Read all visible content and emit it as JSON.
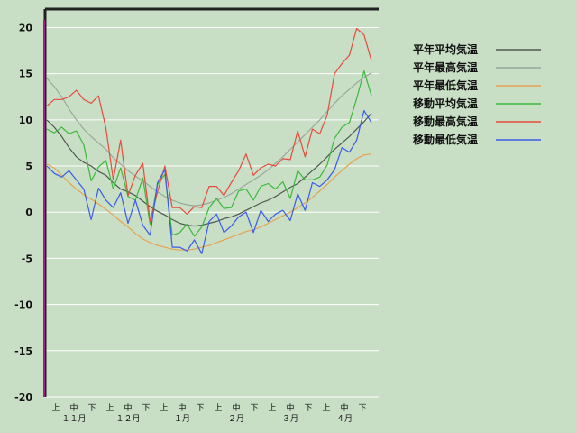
{
  "chart_data": {
    "type": "line",
    "ylim": [
      -20,
      22
    ],
    "y_ticks": [
      20,
      15,
      10,
      5,
      0,
      -5,
      -10,
      -15,
      -20
    ],
    "grid": "horizontal",
    "legend_placement": "right",
    "x_period_ticks": [
      "上",
      "中",
      "下",
      "上",
      "中",
      "下",
      "上",
      "中",
      "下",
      "上",
      "中",
      "下",
      "上",
      "中",
      "下",
      "上",
      "中",
      "下"
    ],
    "months": [
      "１１月",
      "１２月",
      "１月",
      "２月",
      "３月",
      "４月"
    ],
    "x": [
      0,
      4,
      8,
      12,
      16,
      20,
      24,
      28,
      32,
      36,
      40,
      44,
      48,
      52,
      56,
      60,
      64,
      68,
      72,
      76,
      80,
      84,
      88,
      92,
      96,
      100,
      104,
      108,
      112,
      116,
      120,
      124,
      128,
      132,
      136,
      140,
      144,
      148,
      152,
      156,
      160,
      164,
      168,
      172,
      176
    ],
    "series": [
      {
        "name": "平年平均気温",
        "color": "#505850",
        "values": [
          10,
          9.2,
          8.2,
          7,
          6,
          5.4,
          5,
          4.4,
          4,
          3.2,
          2.5,
          2.2,
          1.8,
          1.2,
          0.6,
          0.1,
          -0.3,
          -0.8,
          -1.2,
          -1.4,
          -1.5,
          -1.4,
          -1.2,
          -1,
          -0.7,
          -0.5,
          -0.2,
          0.2,
          0.6,
          1,
          1.3,
          1.7,
          2.2,
          2.7,
          3.1,
          3.8,
          4.5,
          5.2,
          6,
          6.8,
          7.5,
          8.2,
          9,
          9.8,
          10.7
        ]
      },
      {
        "name": "平年最高気温",
        "color": "#9aa89a",
        "values": [
          14.5,
          13.6,
          12.5,
          11.2,
          10,
          9,
          8.2,
          7.5,
          6.8,
          5.9,
          5.2,
          4.5,
          3.9,
          3.4,
          2.8,
          2.2,
          1.7,
          1.3,
          1,
          0.8,
          0.7,
          0.8,
          1,
          1.3,
          1.6,
          2,
          2.5,
          3,
          3.5,
          4,
          4.6,
          5.3,
          6,
          6.8,
          7.6,
          8.4,
          9.2,
          10,
          10.9,
          11.8,
          12.6,
          13.3,
          14,
          14.6,
          15.1
        ]
      },
      {
        "name": "平年最低気温",
        "color": "#e8a050",
        "values": [
          5.2,
          4.8,
          4,
          3.2,
          2.5,
          1.9,
          1.4,
          0.9,
          0.3,
          -0.3,
          -1,
          -1.6,
          -2.3,
          -2.9,
          -3.3,
          -3.6,
          -3.8,
          -4,
          -4.1,
          -4.1,
          -4,
          -3.8,
          -3.6,
          -3.3,
          -3,
          -2.7,
          -2.4,
          -2.1,
          -1.9,
          -1.6,
          -1.2,
          -0.8,
          -0.4,
          0,
          0.5,
          1,
          1.6,
          2.3,
          3,
          3.8,
          4.5,
          5.2,
          5.8,
          6.2,
          6.3
        ]
      },
      {
        "name": "移動平均気温",
        "color": "#3cb83c",
        "values": [
          9,
          8.6,
          9.2,
          8.5,
          8.8,
          7.3,
          3.4,
          4.9,
          5.6,
          2.5,
          4.8,
          1.7,
          1.3,
          3.7,
          -1.3,
          3,
          4.1,
          -2.5,
          -2.2,
          -1.3,
          -2.6,
          -1.6,
          0.5,
          1.5,
          0.4,
          0.5,
          2.3,
          2.5,
          1.3,
          2.8,
          3.1,
          2.5,
          3.3,
          1.5,
          4.5,
          3.5,
          3.5,
          3.8,
          5.1,
          8,
          9.2,
          9.7,
          12.3,
          15.3,
          12.6
        ]
      },
      {
        "name": "移動最高気温",
        "color": "#e84a3a",
        "values": [
          11.5,
          12.2,
          12.2,
          12.5,
          13.2,
          12.2,
          11.8,
          12.6,
          9.1,
          3.5,
          7.8,
          1.8,
          4,
          5.3,
          -1,
          2.2,
          5,
          0.5,
          0.5,
          -0.2,
          0.6,
          0.5,
          2.8,
          2.8,
          1.8,
          3.2,
          4.5,
          6.3,
          4,
          4.8,
          5.2,
          5,
          5.8,
          5.7,
          8.8,
          6,
          9,
          8.5,
          10.5,
          15,
          16.1,
          17,
          19.9,
          19.2,
          16.4
        ]
      },
      {
        "name": "移動最低気温",
        "color": "#3a5ae8",
        "values": [
          5,
          4.2,
          3.8,
          4.5,
          3.5,
          2.5,
          -0.8,
          2.6,
          1.3,
          0.5,
          2.1,
          -1.2,
          1.3,
          -1.4,
          -2.5,
          3.2,
          4.6,
          -3.8,
          -3.8,
          -4.2,
          -3,
          -4.5,
          -1,
          -0.2,
          -2.2,
          -1.5,
          -0.5,
          0,
          -2.2,
          0.2,
          -1,
          -0.2,
          0.2,
          -0.9,
          2,
          0.2,
          3.2,
          2.8,
          3.5,
          4.6,
          7,
          6.5,
          7.8,
          11,
          9.7
        ]
      }
    ]
  }
}
